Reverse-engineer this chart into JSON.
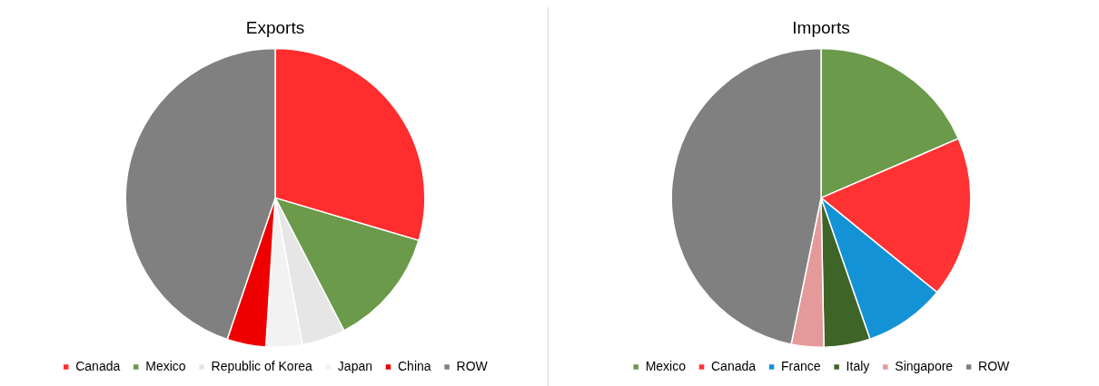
{
  "chart_data": [
    {
      "type": "pie",
      "title": "Exports",
      "categories": [
        "Canada",
        "Mexico",
        "Republic of Korea",
        "Japan",
        "China",
        "ROW"
      ],
      "values": [
        29.6,
        12.8,
        4.7,
        3.9,
        4.2,
        44.8
      ],
      "colors": [
        "#ff2d2d",
        "#6a9a4a",
        "#e6e6e6",
        "#f2f2f2",
        "#ee0000",
        "#808080"
      ],
      "legend": "bottom"
    },
    {
      "type": "pie",
      "title": "Imports",
      "categories": [
        "Mexico",
        "Canada",
        "France",
        "Italy",
        "Singapore",
        "ROW"
      ],
      "values": [
        18.5,
        17.4,
        8.8,
        5.0,
        3.5,
        46.8
      ],
      "colors": [
        "#6a9a4a",
        "#ff3333",
        "#1492d6",
        "#3f6428",
        "#e49a9a",
        "#808080"
      ],
      "legend": "bottom"
    }
  ]
}
